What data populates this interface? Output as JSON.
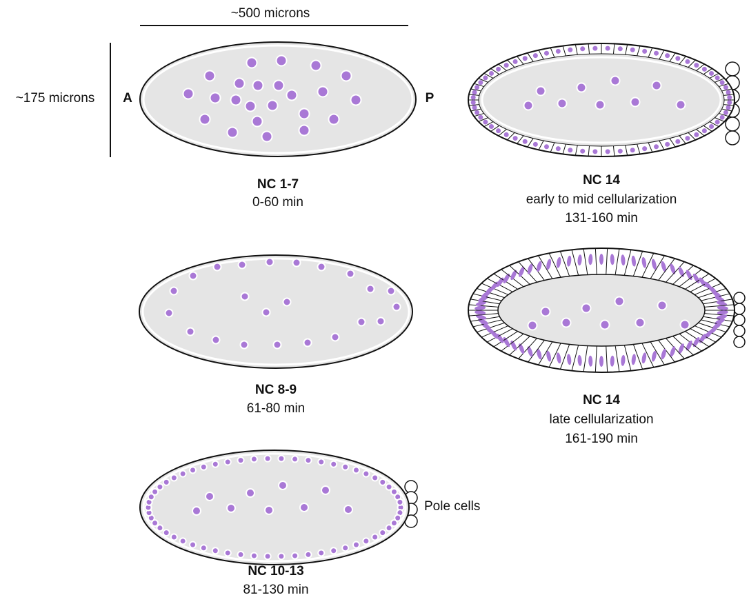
{
  "scale": {
    "length": "~500 microns",
    "width": "~175 microns"
  },
  "axis": {
    "anterior": "A",
    "posterior": "P"
  },
  "stages": [
    {
      "name": "NC 1-7",
      "time": "0-60 min"
    },
    {
      "name": "NC 8-9",
      "time": "61-80 min"
    },
    {
      "name": "NC 10-13",
      "time": "81-130 min",
      "annotation": "Pole cells"
    },
    {
      "name": "NC 14",
      "description": "early to mid cellularization",
      "time": "131-160 min"
    },
    {
      "name": "NC 14",
      "description": "late cellularization",
      "time": "161-190 min"
    }
  ]
}
